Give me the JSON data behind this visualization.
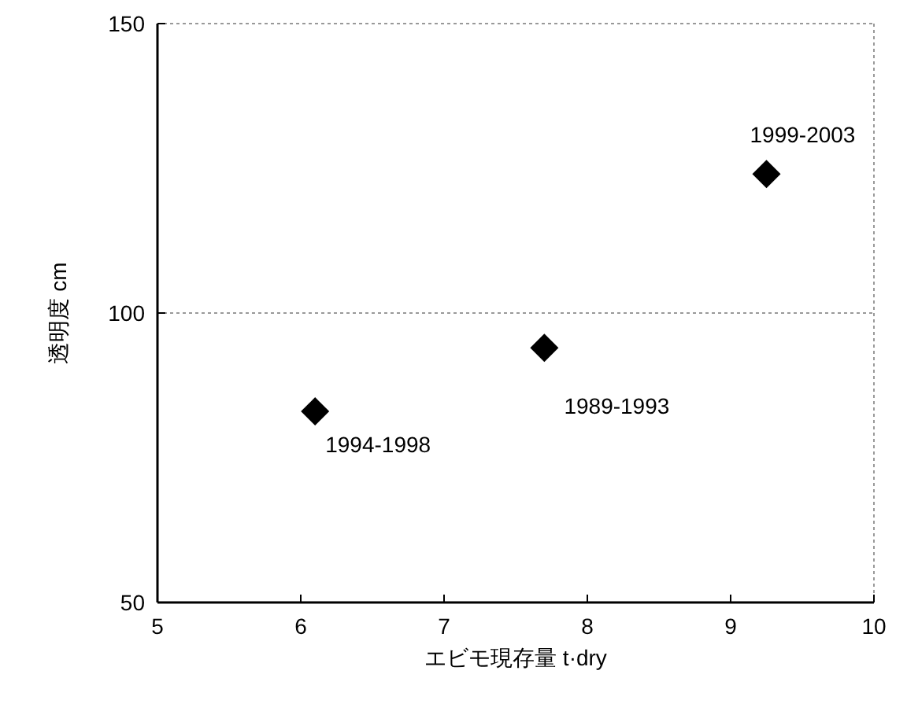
{
  "chart_data": {
    "type": "scatter",
    "xlabel": "エビモ現存量 t·dry",
    "ylabel": "透明度 cm",
    "x": [
      6.1,
      7.7,
      9.25
    ],
    "series": [
      {
        "color": "#000000",
        "values": [
          83,
          94,
          124
        ]
      }
    ],
    "marker": "diamond",
    "grid": "y",
    "xlim": [
      5,
      10
    ],
    "ylim": [
      50,
      150
    ],
    "xticks": [
      5,
      6,
      7,
      8,
      9,
      10
    ],
    "yticks": [
      50,
      100,
      150
    ],
    "annotations": [
      {
        "text": "1994-1998",
        "x": 6.1,
        "y": 83
      },
      {
        "text": "1989-1993",
        "x": 7.7,
        "y": 94
      },
      {
        "text": "1999-2003",
        "x": 9.25,
        "y": 124
      }
    ]
  }
}
